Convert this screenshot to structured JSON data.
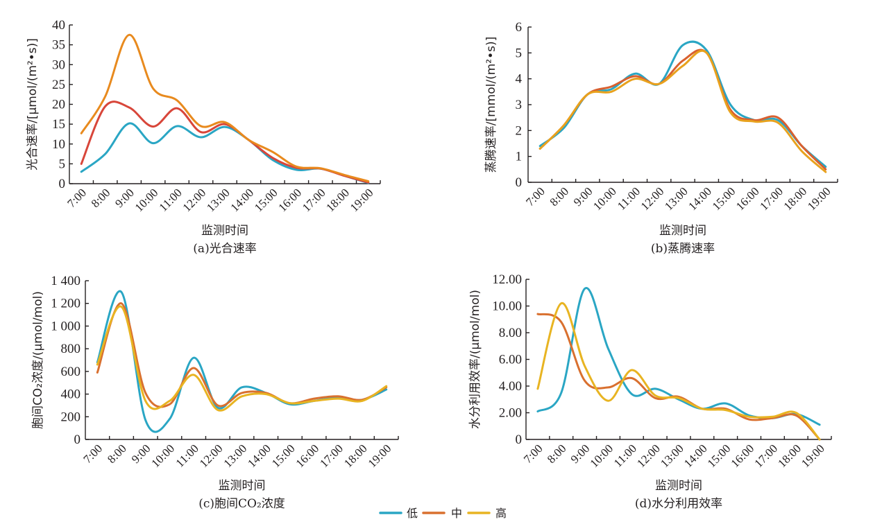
{
  "legend": {
    "items": [
      {
        "label": "低",
        "color": "#2aa6c4"
      },
      {
        "label": "中",
        "color": "#d9702f"
      },
      {
        "label": "高",
        "color": "#e8b422"
      }
    ]
  },
  "chart_data": [
    {
      "id": "a",
      "type": "line",
      "title": "(a)光合速率",
      "xlabel": "监测时间",
      "ylabel": "光合速率/[μmol/(m²•s)]",
      "categories": [
        "7:00",
        "8:00",
        "9:00",
        "10:00",
        "11:00",
        "12:00",
        "13:00",
        "14:00",
        "15:00",
        "16:00",
        "17:00",
        "18:00",
        "19:00"
      ],
      "ylim": [
        0,
        40
      ],
      "yticks": [
        0,
        5,
        10,
        15,
        20,
        25,
        30,
        35,
        40
      ],
      "ytick_labels": [
        "0",
        "5",
        "10",
        "15",
        "20",
        "25",
        "30",
        "35",
        "40"
      ],
      "grid": false,
      "series": [
        {
          "name": "低",
          "color": "#2aa6c4",
          "values": [
            3.0,
            7.5,
            15.2,
            10.2,
            14.5,
            11.7,
            14.3,
            11.0,
            6.0,
            3.5,
            3.8,
            2.0,
            0.2
          ]
        },
        {
          "name": "中",
          "color": "#d8463a",
          "values": [
            5.0,
            19.5,
            19.2,
            14.4,
            19.0,
            13.0,
            15.0,
            11.0,
            6.5,
            4.0,
            3.8,
            2.0,
            0.3
          ]
        },
        {
          "name": "高",
          "color": "#e88a1e",
          "values": [
            12.7,
            22.0,
            37.5,
            24.0,
            21.0,
            14.5,
            15.5,
            11.0,
            8.0,
            4.3,
            3.9,
            2.2,
            0.6
          ]
        }
      ]
    },
    {
      "id": "b",
      "type": "line",
      "title": "(b)蒸腾速率",
      "xlabel": "监测时间",
      "ylabel": "蒸腾速率/[mmol/(m²•s)]",
      "categories": [
        "7:00",
        "8:00",
        "9:00",
        "10:00",
        "11:00",
        "12:00",
        "13:00",
        "14:00",
        "15:00",
        "16:00",
        "17:00",
        "18:00",
        "19:00"
      ],
      "ylim": [
        0,
        6
      ],
      "yticks": [
        0,
        1,
        2,
        3,
        4,
        5,
        6
      ],
      "ytick_labels": [
        "0",
        "1",
        "2",
        "3",
        "4",
        "5",
        "6"
      ],
      "grid": false,
      "series": [
        {
          "name": "低",
          "color": "#2aa6c4",
          "values": [
            1.4,
            2.1,
            3.4,
            3.6,
            4.2,
            3.8,
            5.3,
            5.1,
            3.0,
            2.4,
            2.4,
            1.4,
            0.6
          ]
        },
        {
          "name": "中",
          "color": "#d9602f",
          "values": [
            1.3,
            2.2,
            3.4,
            3.7,
            4.1,
            3.8,
            4.7,
            5.0,
            2.8,
            2.4,
            2.5,
            1.4,
            0.5
          ]
        },
        {
          "name": "高",
          "color": "#e8a21e",
          "values": [
            1.3,
            2.2,
            3.4,
            3.5,
            4.0,
            3.8,
            4.5,
            5.0,
            2.7,
            2.35,
            2.3,
            1.2,
            0.4
          ]
        }
      ]
    },
    {
      "id": "c",
      "type": "line",
      "title": "(c)胞间CO₂浓度",
      "xlabel": "监测时间",
      "ylabel": "胞间CO₂浓度/(μmol/mol)",
      "categories": [
        "7:00",
        "8:00",
        "9:00",
        "10:00",
        "11:00",
        "12:00",
        "13:00",
        "14:00",
        "15:00",
        "16:00",
        "17:00",
        "18:00",
        "19:00"
      ],
      "ylim": [
        0,
        1400
      ],
      "yticks": [
        0,
        200,
        400,
        600,
        800,
        1000,
        1200,
        1400
      ],
      "ytick_labels": [
        "0",
        "200",
        "400",
        "600",
        "800",
        "1 000",
        "1 200",
        "1 400"
      ],
      "grid": false,
      "series": [
        {
          "name": "低",
          "color": "#2aa6c4",
          "values": [
            680,
            1300,
            170,
            180,
            720,
            280,
            460,
            410,
            310,
            340,
            370,
            350,
            440
          ]
        },
        {
          "name": "中",
          "color": "#d9702f",
          "values": [
            590,
            1200,
            410,
            310,
            630,
            300,
            410,
            410,
            320,
            360,
            380,
            350,
            460
          ]
        },
        {
          "name": "高",
          "color": "#e8b422",
          "values": [
            660,
            1170,
            340,
            340,
            570,
            260,
            380,
            400,
            320,
            340,
            360,
            340,
            470
          ]
        }
      ]
    },
    {
      "id": "d",
      "type": "line",
      "title": "(d)水分利用效率",
      "xlabel": "监测时间",
      "ylabel": "水分利用效率/(μmol/mol)",
      "categories": [
        "7:00",
        "8:00",
        "9:00",
        "10:00",
        "11:00",
        "12:00",
        "13:00",
        "14:00",
        "15:00",
        "16:00",
        "17:00",
        "18:00",
        "19:00"
      ],
      "ylim": [
        0,
        12
      ],
      "yticks": [
        0,
        2,
        4,
        6,
        8,
        10,
        12
      ],
      "ytick_labels": [
        "0",
        "2.00",
        "4.00",
        "6.00",
        "8.00",
        "10.00",
        "12.00"
      ],
      "grid": false,
      "series": [
        {
          "name": "低",
          "color": "#2aa6c4",
          "values": [
            2.1,
            3.5,
            11.3,
            6.8,
            3.4,
            3.8,
            3.0,
            2.3,
            2.7,
            1.8,
            1.6,
            1.9,
            1.1
          ]
        },
        {
          "name": "中",
          "color": "#d9702f",
          "values": [
            9.4,
            8.8,
            4.4,
            3.9,
            4.6,
            3.1,
            3.2,
            2.3,
            2.3,
            1.5,
            1.6,
            1.8,
            0.0
          ]
        },
        {
          "name": "高",
          "color": "#e8b422",
          "values": [
            3.8,
            10.2,
            5.5,
            2.9,
            5.2,
            3.3,
            3.1,
            2.3,
            2.2,
            1.7,
            1.7,
            2.0,
            0.0
          ]
        }
      ]
    }
  ]
}
